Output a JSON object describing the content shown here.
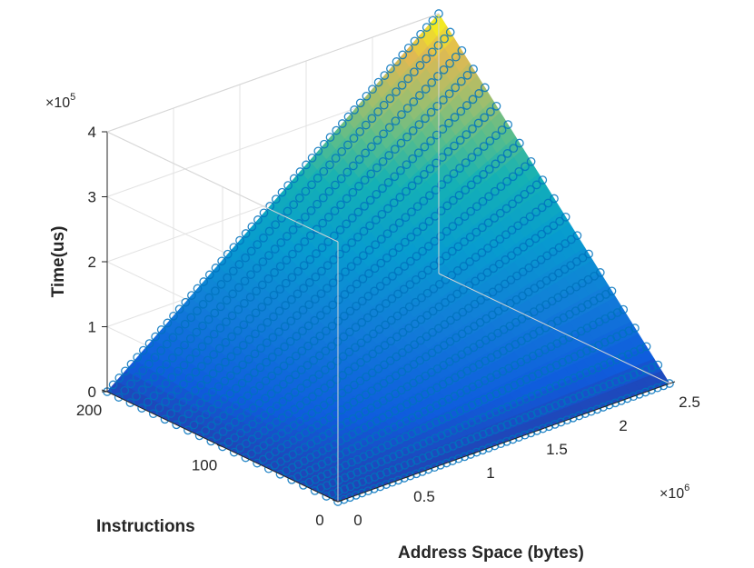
{
  "chart_data": {
    "type": "scatter3d-surface",
    "title": "",
    "xlabel": "Address Space (bytes)",
    "ylabel": "Instructions",
    "zlabel": "Time(us)",
    "x_multiplier": "×10",
    "x_exponent": "6",
    "z_multiplier": "×10",
    "z_exponent": "5",
    "xlim": [
      0,
      2500000
    ],
    "ylim": [
      0,
      200
    ],
    "zlim": [
      0,
      400000
    ],
    "x_ticks": [
      {
        "value": 0,
        "label": "0"
      },
      {
        "value": 500000,
        "label": "0.5"
      },
      {
        "value": 1000000,
        "label": "1"
      },
      {
        "value": 1500000,
        "label": "1.5"
      },
      {
        "value": 2000000,
        "label": "2"
      },
      {
        "value": 2500000,
        "label": "2.5"
      }
    ],
    "y_ticks": [
      {
        "value": 0,
        "label": "0"
      },
      {
        "value": 100,
        "label": "100"
      },
      {
        "value": 200,
        "label": "200"
      }
    ],
    "z_ticks": [
      {
        "value": 0,
        "label": "0"
      },
      {
        "value": 100000,
        "label": "1"
      },
      {
        "value": 200000,
        "label": "2"
      },
      {
        "value": 300000,
        "label": "3"
      },
      {
        "value": 400000,
        "label": "4"
      }
    ],
    "grid": true,
    "colormap": "parula",
    "marker": "circle",
    "marker_color": "#0072BD",
    "series": [
      {
        "y": 0,
        "z_at_x_max": 0
      },
      {
        "y": 10,
        "z_at_x_max": 20000
      },
      {
        "y": 20,
        "z_at_x_max": 40000
      },
      {
        "y": 30,
        "z_at_x_max": 60000
      },
      {
        "y": 40,
        "z_at_x_max": 80000
      },
      {
        "y": 50,
        "z_at_x_max": 100000
      },
      {
        "y": 60,
        "z_at_x_max": 120000
      },
      {
        "y": 70,
        "z_at_x_max": 140000
      },
      {
        "y": 80,
        "z_at_x_max": 160000
      },
      {
        "y": 90,
        "z_at_x_max": 180000
      },
      {
        "y": 100,
        "z_at_x_max": 200000
      },
      {
        "y": 110,
        "z_at_x_max": 220000
      },
      {
        "y": 120,
        "z_at_x_max": 240000
      },
      {
        "y": 130,
        "z_at_x_max": 260000
      },
      {
        "y": 140,
        "z_at_x_max": 280000
      },
      {
        "y": 150,
        "z_at_x_max": 300000
      },
      {
        "y": 160,
        "z_at_x_max": 320000
      },
      {
        "y": 170,
        "z_at_x_max": 340000
      },
      {
        "y": 180,
        "z_at_x_max": 360000
      },
      {
        "y": 190,
        "z_at_x_max": 380000
      },
      {
        "y": 200,
        "z_at_x_max": 400000
      }
    ]
  }
}
